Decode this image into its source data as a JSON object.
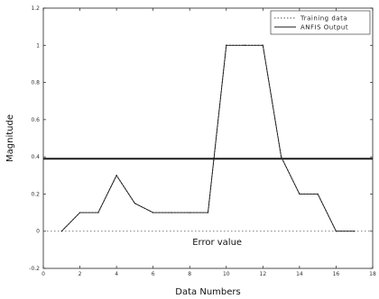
{
  "chart_data": {
    "type": "line",
    "xlabel": "Data Numbers",
    "ylabel": "Magnitude",
    "xlim": [
      0,
      18
    ],
    "ylim": [
      -0.2,
      1.2
    ],
    "xticks": [
      "0",
      "2",
      "4",
      "6",
      "8",
      "10",
      "12",
      "14",
      "16",
      "18"
    ],
    "yticks": [
      "-0.2",
      "0",
      "0.2",
      "0.4",
      "0.6",
      "0.8",
      "1",
      "1.2"
    ],
    "grid": false,
    "legend_position": "top-right",
    "series": [
      {
        "name": "Training data",
        "style": "dotted",
        "x": [
          1,
          2,
          3,
          4,
          5,
          6,
          7,
          8,
          9,
          10,
          11,
          12,
          13,
          14,
          15,
          16,
          17
        ],
        "y": [
          0,
          0.1,
          0.1,
          0.3,
          0.15,
          0.1,
          0.1,
          0.1,
          0.1,
          1.0,
          1.0,
          1.0,
          0.4,
          0.2,
          0.2,
          0,
          0
        ]
      },
      {
        "name": "ANFIS Output",
        "style": "solid",
        "x": [
          1,
          2,
          3,
          4,
          5,
          6,
          7,
          8,
          9,
          10,
          11,
          12,
          13,
          14,
          15,
          16,
          17
        ],
        "y": [
          0,
          0.1,
          0.1,
          0.3,
          0.15,
          0.1,
          0.1,
          0.1,
          0.1,
          1.0,
          1.0,
          1.0,
          0.4,
          0.2,
          0.2,
          0,
          0
        ]
      }
    ],
    "reference_lines": [
      {
        "orientation": "horizontal",
        "y": 0.39,
        "style": "solid-thick"
      },
      {
        "orientation": "horizontal",
        "y": 0,
        "style": "dotted"
      }
    ],
    "annotations": [
      {
        "text": "Error value",
        "x": 9.5,
        "y": -0.06
      }
    ]
  },
  "colors": {
    "line": "#1a1a1a",
    "dotted": "#555555",
    "axis": "#222222",
    "background": "#ffffff"
  }
}
